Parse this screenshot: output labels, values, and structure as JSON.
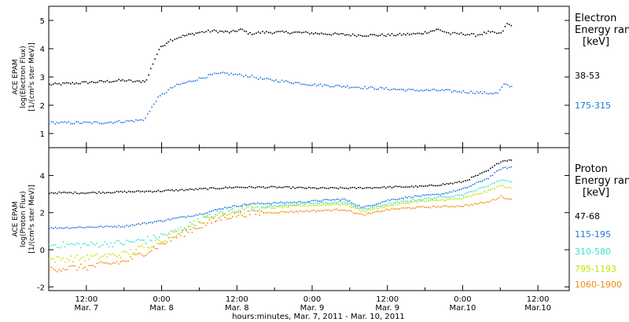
{
  "x_axis": {
    "footer": "hours:minutes, Mar.  7, 2011 - Mar. 10, 2011",
    "ticks": [
      {
        "t": 12,
        "time": "12:00",
        "date": "Mar. 7"
      },
      {
        "t": 24,
        "time": "0:00",
        "date": "Mar. 8"
      },
      {
        "t": 36,
        "time": "12:00",
        "date": "Mar. 8"
      },
      {
        "t": 48,
        "time": "0:00",
        "date": "Mar. 9"
      },
      {
        "t": 60,
        "time": "12:00",
        "date": "Mar. 9"
      },
      {
        "t": 72,
        "time": "0:00",
        "date": "Mar.10"
      },
      {
        "t": 84,
        "time": "12:00",
        "date": "Mar.10"
      }
    ],
    "range_hours": [
      6,
      89
    ]
  },
  "chart_data": [
    {
      "type": "scatter",
      "panel": "electron",
      "ylabel": [
        "ACE EPAM",
        "log(Electron Flux)",
        "[1/(cm²s ster MeV)]"
      ],
      "ylim": [
        0.5,
        5.5
      ],
      "yticks": [
        1,
        2,
        3,
        4,
        5
      ],
      "legend_title": [
        "Electron",
        "Energy ran",
        "[keV]"
      ],
      "series": [
        {
          "name": "38-53",
          "color": "#000000",
          "points": [
            [
              6,
              2.75
            ],
            [
              10,
              2.8
            ],
            [
              14,
              2.85
            ],
            [
              18,
              2.9
            ],
            [
              20,
              2.85
            ],
            [
              21.5,
              2.9
            ],
            [
              22.5,
              3.5
            ],
            [
              23.5,
              4.0
            ],
            [
              25,
              4.3
            ],
            [
              27,
              4.45
            ],
            [
              30,
              4.6
            ],
            [
              32,
              4.65
            ],
            [
              35,
              4.6
            ],
            [
              36.5,
              4.7
            ],
            [
              38,
              4.55
            ],
            [
              40,
              4.6
            ],
            [
              45,
              4.6
            ],
            [
              50,
              4.55
            ],
            [
              55,
              4.5
            ],
            [
              60,
              4.5
            ],
            [
              65,
              4.55
            ],
            [
              68,
              4.7
            ],
            [
              70,
              4.55
            ],
            [
              72,
              4.55
            ],
            [
              74,
              4.5
            ],
            [
              76,
              4.6
            ],
            [
              78,
              4.55
            ],
            [
              79,
              4.9
            ],
            [
              80,
              4.8
            ]
          ]
        },
        {
          "name": "175-315",
          "color": "#1f77d8",
          "points": [
            [
              6,
              1.4
            ],
            [
              10,
              1.4
            ],
            [
              14,
              1.4
            ],
            [
              18,
              1.45
            ],
            [
              21,
              1.5
            ],
            [
              22,
              1.8
            ],
            [
              23,
              2.2
            ],
            [
              24,
              2.4
            ],
            [
              26,
              2.7
            ],
            [
              29,
              2.9
            ],
            [
              32,
              3.1
            ],
            [
              34,
              3.15
            ],
            [
              36,
              3.1
            ],
            [
              38,
              3.05
            ],
            [
              40,
              2.95
            ],
            [
              44,
              2.85
            ],
            [
              48,
              2.75
            ],
            [
              52,
              2.7
            ],
            [
              56,
              2.65
            ],
            [
              60,
              2.6
            ],
            [
              64,
              2.55
            ],
            [
              68,
              2.55
            ],
            [
              72,
              2.5
            ],
            [
              76,
              2.45
            ],
            [
              77.5,
              2.45
            ],
            [
              78.5,
              2.75
            ],
            [
              80,
              2.65
            ]
          ]
        }
      ]
    },
    {
      "type": "scatter",
      "panel": "proton",
      "ylabel": [
        "ACE EPAM",
        "log(Proton Flux)",
        "[1/(cm²s ster MeV)]"
      ],
      "ylim": [
        -2.2,
        5.5
      ],
      "yticks": [
        -2,
        0,
        2,
        4
      ],
      "legend_title": [
        "Proton",
        "Energy ran",
        "[keV]"
      ],
      "series": [
        {
          "name": "47-68",
          "color": "#000000",
          "points": [
            [
              6,
              3.1
            ],
            [
              12,
              3.1
            ],
            [
              18,
              3.15
            ],
            [
              24,
              3.2
            ],
            [
              30,
              3.3
            ],
            [
              36,
              3.4
            ],
            [
              42,
              3.4
            ],
            [
              48,
              3.35
            ],
            [
              54,
              3.35
            ],
            [
              60,
              3.4
            ],
            [
              66,
              3.45
            ],
            [
              70,
              3.6
            ],
            [
              72,
              3.7
            ],
            [
              74,
              4.0
            ],
            [
              76,
              4.3
            ],
            [
              78,
              4.8
            ],
            [
              80,
              4.9
            ]
          ]
        },
        {
          "name": "115-195",
          "color": "#1f77d8",
          "points": [
            [
              6,
              1.2
            ],
            [
              12,
              1.25
            ],
            [
              18,
              1.3
            ],
            [
              24,
              1.6
            ],
            [
              30,
              1.95
            ],
            [
              34,
              2.3
            ],
            [
              38,
              2.5
            ],
            [
              42,
              2.55
            ],
            [
              46,
              2.6
            ],
            [
              50,
              2.7
            ],
            [
              53,
              2.75
            ],
            [
              56,
              2.3
            ],
            [
              60,
              2.7
            ],
            [
              64,
              2.9
            ],
            [
              68,
              3.0
            ],
            [
              72,
              3.3
            ],
            [
              76,
              3.9
            ],
            [
              78,
              4.4
            ],
            [
              80,
              4.5
            ]
          ]
        },
        {
          "name": "310-580",
          "color": "#3ee0d0",
          "points": [
            [
              6,
              0.3
            ],
            [
              12,
              0.3
            ],
            [
              18,
              0.4
            ],
            [
              22,
              0.6
            ],
            [
              26,
              1.0
            ],
            [
              30,
              1.6
            ],
            [
              34,
              2.1
            ],
            [
              38,
              2.3
            ],
            [
              42,
              2.4
            ],
            [
              46,
              2.5
            ],
            [
              50,
              2.55
            ],
            [
              53,
              2.6
            ],
            [
              56,
              2.2
            ],
            [
              60,
              2.5
            ],
            [
              64,
              2.7
            ],
            [
              68,
              2.85
            ],
            [
              72,
              3.0
            ],
            [
              76,
              3.5
            ],
            [
              78,
              3.8
            ],
            [
              80,
              3.7
            ]
          ]
        },
        {
          "name": "795-1193",
          "color": "#c8e000",
          "points": [
            [
              6,
              -0.5
            ],
            [
              12,
              -0.4
            ],
            [
              18,
              -0.2
            ],
            [
              22,
              0.3
            ],
            [
              26,
              0.9
            ],
            [
              30,
              1.6
            ],
            [
              34,
              2.0
            ],
            [
              38,
              2.2
            ],
            [
              42,
              2.3
            ],
            [
              46,
              2.4
            ],
            [
              50,
              2.45
            ],
            [
              53,
              2.5
            ],
            [
              56,
              2.1
            ],
            [
              60,
              2.4
            ],
            [
              64,
              2.6
            ],
            [
              68,
              2.7
            ],
            [
              72,
              2.8
            ],
            [
              76,
              3.2
            ],
            [
              78,
              3.5
            ],
            [
              80,
              3.3
            ]
          ]
        },
        {
          "name": "1060-1900",
          "color": "#f08a10",
          "points": [
            [
              6,
              -1.0
            ],
            [
              12,
              -0.9
            ],
            [
              18,
              -0.6
            ],
            [
              22,
              0.0
            ],
            [
              26,
              0.7
            ],
            [
              30,
              1.3
            ],
            [
              34,
              1.8
            ],
            [
              38,
              2.0
            ],
            [
              42,
              2.05
            ],
            [
              46,
              2.1
            ],
            [
              50,
              2.15
            ],
            [
              53,
              2.2
            ],
            [
              56,
              1.9
            ],
            [
              60,
              2.2
            ],
            [
              64,
              2.3
            ],
            [
              68,
              2.35
            ],
            [
              72,
              2.4
            ],
            [
              76,
              2.6
            ],
            [
              78,
              2.9
            ],
            [
              80,
              2.7
            ]
          ]
        }
      ]
    }
  ]
}
